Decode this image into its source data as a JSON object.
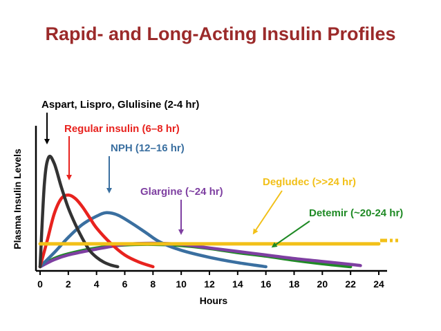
{
  "title": "Rapid- and Long-Acting Insulin Profiles",
  "chart_data": {
    "type": "line",
    "title": "Rapid- and Long-Acting Insulin Profiles",
    "xlabel": "Hours",
    "ylabel": "Plasma Insulin Levels",
    "xlim": [
      0,
      24
    ],
    "ylim": [
      0,
      1
    ],
    "xticks": [
      "0",
      "2",
      "4",
      "6",
      "8",
      "10",
      "12",
      "14",
      "16",
      "18",
      "20",
      "22",
      "24"
    ],
    "yticks": [],
    "grid": false,
    "series": [
      {
        "name": "Aspart, Lispro, Glulisine (2-4 hr)",
        "color": "#333333",
        "points": [
          [
            0,
            0
          ],
          [
            0.3,
            0.7
          ],
          [
            0.6,
            0.93
          ],
          [
            1,
            0.88
          ],
          [
            1.5,
            0.68
          ],
          [
            2,
            0.5
          ],
          [
            2.5,
            0.36
          ],
          [
            3,
            0.24
          ],
          [
            3.5,
            0.14
          ],
          [
            4,
            0.08
          ],
          [
            4.5,
            0.04
          ],
          [
            5,
            0.015
          ],
          [
            5.5,
            0
          ]
        ]
      },
      {
        "name": "Regular insulin (6–8 hr)",
        "color": "#e8221e",
        "points": [
          [
            0,
            0
          ],
          [
            0.5,
            0.22
          ],
          [
            1,
            0.45
          ],
          [
            1.5,
            0.58
          ],
          [
            2,
            0.61
          ],
          [
            2.5,
            0.58
          ],
          [
            3,
            0.51
          ],
          [
            3.5,
            0.42
          ],
          [
            4,
            0.33
          ],
          [
            5,
            0.2
          ],
          [
            6,
            0.1
          ],
          [
            7,
            0.04
          ],
          [
            8,
            0
          ]
        ]
      },
      {
        "name": "NPH (12–16 hr)",
        "color": "#3a6fa0",
        "points": [
          [
            0,
            0
          ],
          [
            1,
            0.12
          ],
          [
            2,
            0.25
          ],
          [
            3,
            0.36
          ],
          [
            4,
            0.43
          ],
          [
            4.7,
            0.46
          ],
          [
            5.5,
            0.44
          ],
          [
            6.5,
            0.37
          ],
          [
            7.5,
            0.29
          ],
          [
            8.5,
            0.21
          ],
          [
            10,
            0.14
          ],
          [
            12,
            0.08
          ],
          [
            14,
            0.035
          ],
          [
            16,
            0
          ]
        ]
      },
      {
        "name": "Glargine (~24 hr)",
        "color": "#7e3fa1",
        "points": [
          [
            0,
            0
          ],
          [
            1,
            0.06
          ],
          [
            2,
            0.1
          ],
          [
            4,
            0.15
          ],
          [
            6,
            0.19
          ],
          [
            8,
            0.2
          ],
          [
            10,
            0.19
          ],
          [
            12,
            0.16
          ],
          [
            14,
            0.13
          ],
          [
            16,
            0.1
          ],
          [
            18,
            0.07
          ],
          [
            20,
            0.045
          ],
          [
            22,
            0.02
          ],
          [
            22.7,
            0.01
          ]
        ]
      },
      {
        "name": "Degludec (>>24 hr)",
        "color": "#f2c018",
        "points": [
          [
            0,
            0.195
          ],
          [
            24,
            0.195
          ]
        ]
      },
      {
        "name": "Detemir (~20-24 hr)",
        "color": "#1f8a25",
        "points": [
          [
            0,
            0
          ],
          [
            1,
            0.07
          ],
          [
            2,
            0.11
          ],
          [
            4,
            0.16
          ],
          [
            6,
            0.185
          ],
          [
            8,
            0.19
          ],
          [
            10,
            0.18
          ],
          [
            12,
            0.155
          ],
          [
            14,
            0.12
          ],
          [
            16,
            0.09
          ],
          [
            18,
            0.055
          ],
          [
            20,
            0.025
          ],
          [
            22,
            0
          ]
        ]
      }
    ]
  }
}
